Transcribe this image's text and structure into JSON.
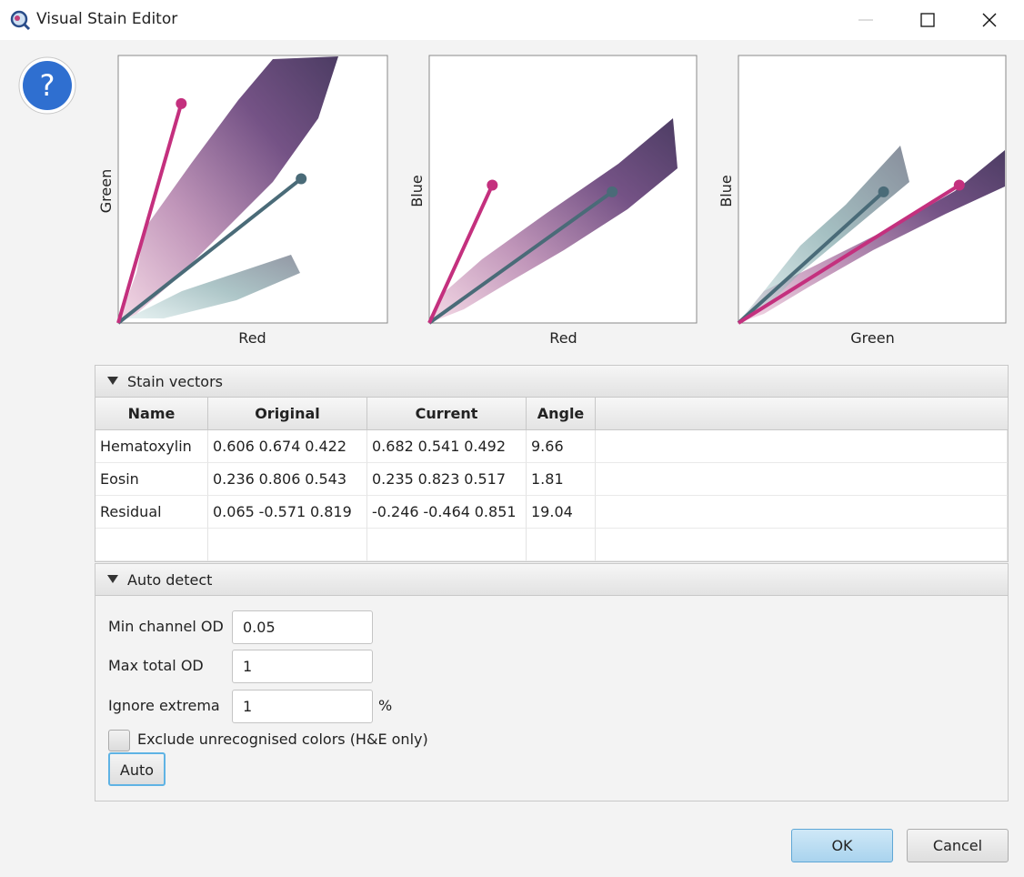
{
  "window": {
    "title": "Visual Stain Editor"
  },
  "plots": [
    {
      "x_label": "Red",
      "y_label": "Green",
      "xlim": [
        0,
        1
      ],
      "ylim": [
        0,
        1
      ]
    },
    {
      "x_label": "Red",
      "y_label": "Blue",
      "xlim": [
        0,
        1
      ],
      "ylim": [
        0,
        1
      ]
    },
    {
      "x_label": "Green",
      "y_label": "Blue",
      "xlim": [
        0,
        1
      ],
      "ylim": [
        0,
        1
      ]
    }
  ],
  "stain_vectors": {
    "title": "Stain vectors",
    "columns": [
      "Name",
      "Original",
      "Current",
      "Angle"
    ],
    "rows": [
      {
        "name": "Hematoxylin",
        "original": [
          0.606,
          0.674,
          0.422
        ],
        "current": [
          0.682,
          0.541,
          0.492
        ],
        "angle": 9.66,
        "color": "#4a6b78"
      },
      {
        "name": "Eosin",
        "original": [
          0.236,
          0.806,
          0.543
        ],
        "current": [
          0.235,
          0.823,
          0.517
        ],
        "angle": 1.81,
        "color": "#c4307e"
      },
      {
        "name": "Residual",
        "original": [
          0.065,
          -0.571,
          0.819
        ],
        "current": [
          -0.246,
          -0.464,
          0.851
        ],
        "angle": 19.04
      }
    ]
  },
  "auto_detect": {
    "title": "Auto detect",
    "fields": [
      {
        "label": "Min channel OD",
        "value": "0.05"
      },
      {
        "label": "Max total OD",
        "value": "1"
      },
      {
        "label": "Ignore extrema",
        "value": "1",
        "unit": "%"
      }
    ],
    "checkbox": "Exclude unrecognised colors (H&E only)",
    "button": "Auto"
  },
  "buttons": {
    "ok": "OK",
    "cancel": "Cancel"
  }
}
